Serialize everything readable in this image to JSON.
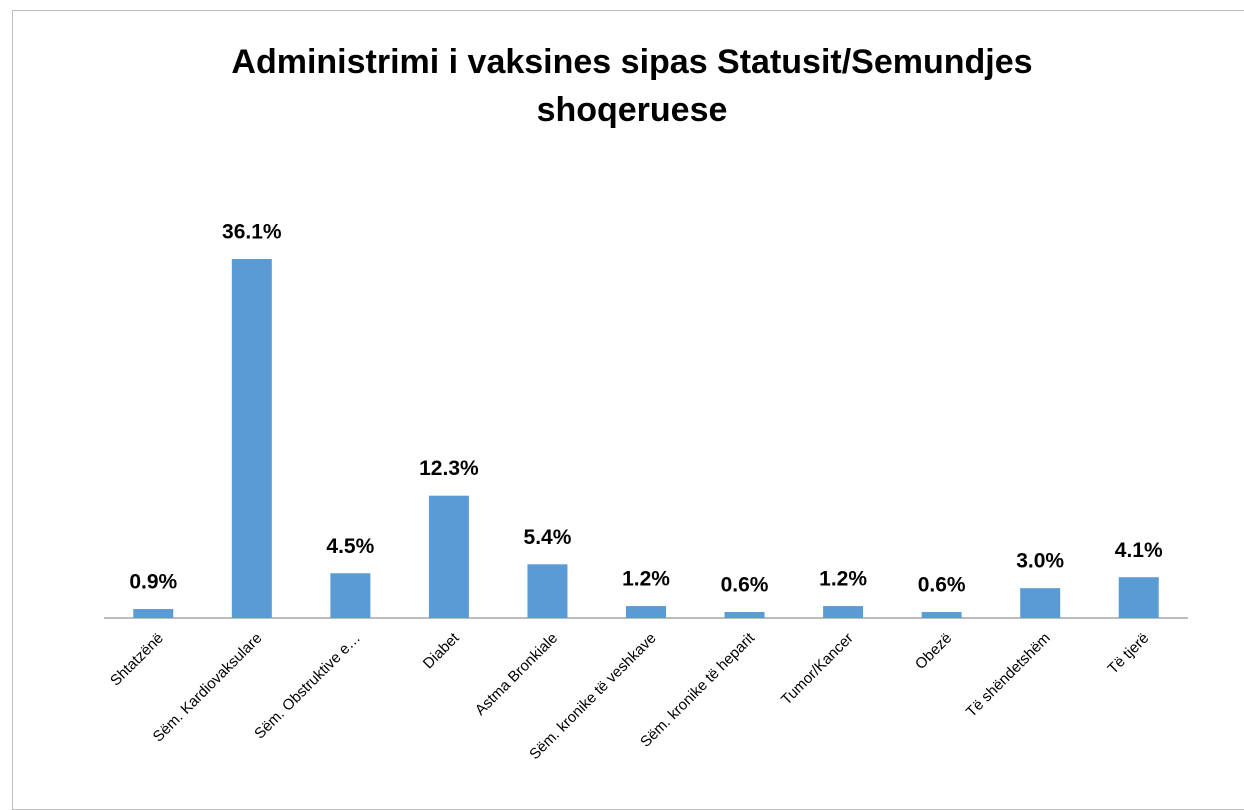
{
  "chart_data": {
    "type": "bar",
    "title": "Administrimi i vaksines sipas Statusit/Semundjes shoqeruese",
    "categories": [
      "Shtatzënë",
      "Sëm. Kardiovaksulare",
      "Sëm. Obstruktive e…",
      "Diabet",
      "Astma Bronkiale",
      "Sëm. kronike të veshkave",
      "Sëm. kronike të heparit",
      "Tumor/Kancer",
      "Obezë",
      "Të shëndetshëm",
      "Të tjerë"
    ],
    "values": [
      0.9,
      36.1,
      4.5,
      12.3,
      5.4,
      1.2,
      0.6,
      1.2,
      0.6,
      3.0,
      4.1
    ],
    "value_labels": [
      "0.9%",
      "36.1%",
      "4.5%",
      "12.3%",
      "5.4%",
      "1.2%",
      "0.6%",
      "1.2%",
      "0.6%",
      "3.0%",
      "4.1%"
    ],
    "color": "#5b9bd5"
  }
}
